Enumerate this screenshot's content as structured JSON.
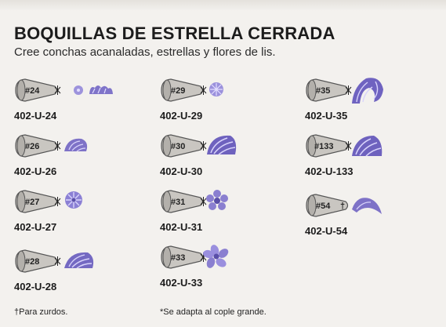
{
  "header": {
    "title": "BOQUILLAS DE ESTRELLA CERRADA",
    "subtitle": "Cree conchas acanaladas, estrellas y flores de lis."
  },
  "tips": [
    {
      "number": "#24",
      "code": "402-U-24",
      "sample": "shell-pair"
    },
    {
      "number": "#26",
      "code": "402-U-26",
      "sample": "shell"
    },
    {
      "number": "#27",
      "code": "402-U-27",
      "sample": "star"
    },
    {
      "number": "#28",
      "code": "402-U-28",
      "sample": "shell-large"
    },
    {
      "number": "#29",
      "code": "402-U-29",
      "sample": "star-small"
    },
    {
      "number": "#30",
      "code": "402-U-30",
      "sample": "shell-large"
    },
    {
      "number": "#31",
      "code": "402-U-31",
      "sample": "flower"
    },
    {
      "number": "#33",
      "code": "402-U-33",
      "sample": "flower-twist"
    },
    {
      "number": "#35",
      "code": "402-U-35",
      "sample": "fleur"
    },
    {
      "number": "#133",
      "code": "402-U-133",
      "sample": "shell-large"
    },
    {
      "number": "#54",
      "code": "402-U-54",
      "sample": "wave",
      "mark": "†"
    }
  ],
  "footnotes": {
    "left": "†Para zurdos.",
    "right": "*Se adapta al cople grande."
  },
  "colors": {
    "icing": "#8a7fd0",
    "icing_dark": "#5a4fa8",
    "nozzle": "#c9c6c1"
  }
}
